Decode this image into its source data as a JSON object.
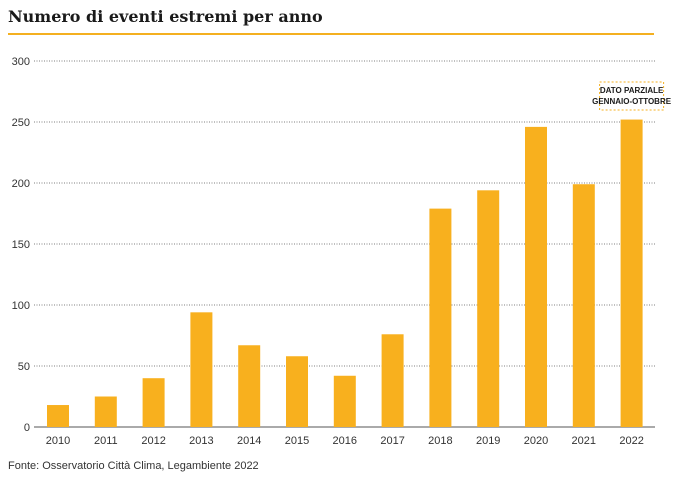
{
  "title": "Numero di eventi estremi per anno",
  "source": "Fonte: Osservatorio Città Clima, Legambiente 2022",
  "colors": {
    "bar": "#f8b01e",
    "accent_rule": "#f4b020",
    "grid": "#555555"
  },
  "chart_data": {
    "type": "bar",
    "title": "Numero di eventi estremi per anno",
    "xlabel": "",
    "ylabel": "",
    "ylim": [
      0,
      300
    ],
    "yticks": [
      0,
      50,
      100,
      150,
      200,
      250,
      300
    ],
    "grid": true,
    "categories": [
      "2010",
      "2011",
      "2012",
      "2013",
      "2014",
      "2015",
      "2016",
      "2017",
      "2018",
      "2019",
      "2020",
      "2021",
      "2022"
    ],
    "values": [
      18,
      25,
      40,
      94,
      67,
      58,
      42,
      76,
      179,
      194,
      246,
      199,
      252
    ],
    "annotation": {
      "category": "2022",
      "lines": [
        "DATO PARZIALE",
        "GENNAIO-OTTOBRE"
      ]
    }
  }
}
